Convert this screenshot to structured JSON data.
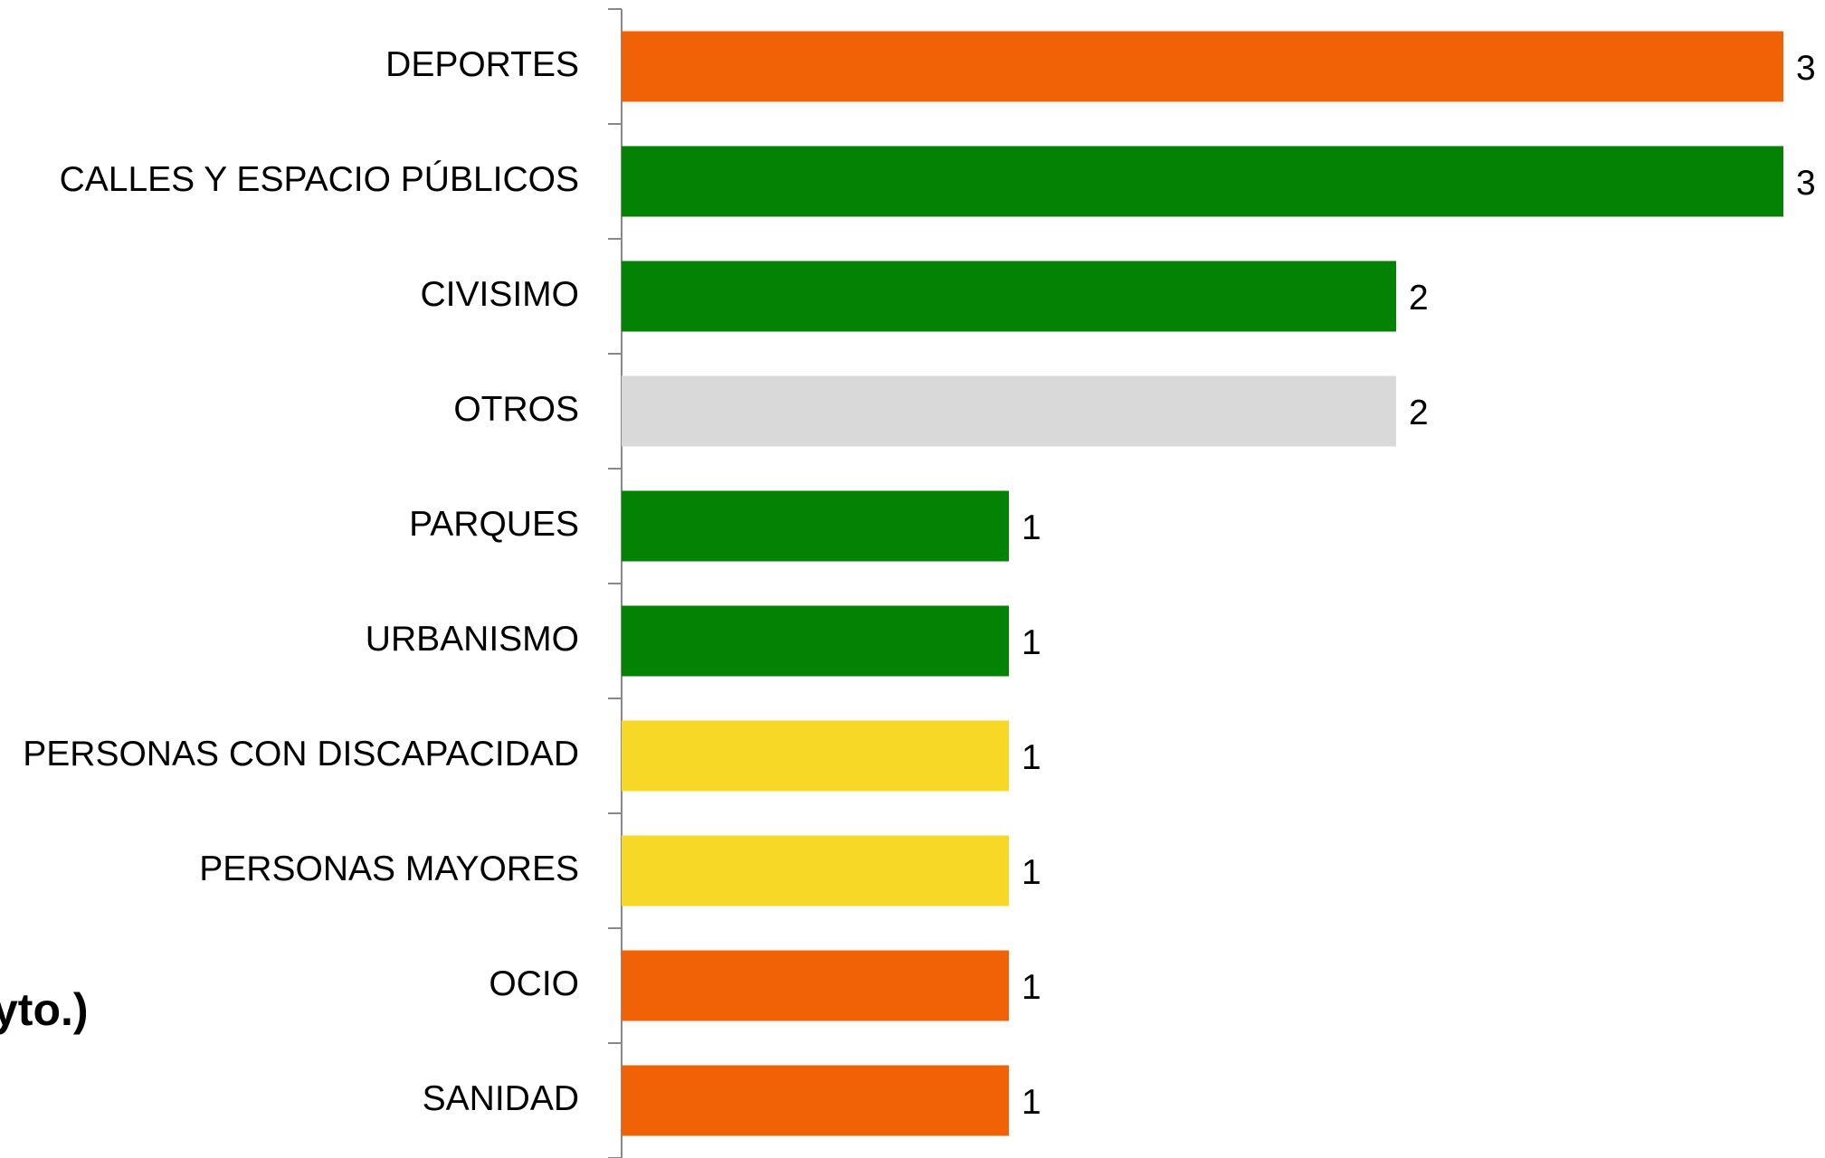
{
  "chart_data": {
    "type": "barh",
    "annotation": "yto.)",
    "categories": [
      "DEPORTES",
      "CALLES Y ESPACIO PÚBLICOS",
      "CIVISIMO",
      "OTROS",
      "PARQUES",
      "URBANISMO",
      "PERSONAS CON DISCAPACIDAD",
      "PERSONAS MAYORES",
      "OCIO",
      "SANIDAD"
    ],
    "values": [
      3,
      3,
      2,
      2,
      1,
      1,
      1,
      1,
      1,
      1
    ],
    "colors": [
      "#f06205",
      "#038203",
      "#038203",
      "#d9d9d9",
      "#038203",
      "#038203",
      "#f7d826",
      "#f7d826",
      "#f06205",
      "#f06205"
    ],
    "xlim": [
      0,
      3
    ]
  }
}
